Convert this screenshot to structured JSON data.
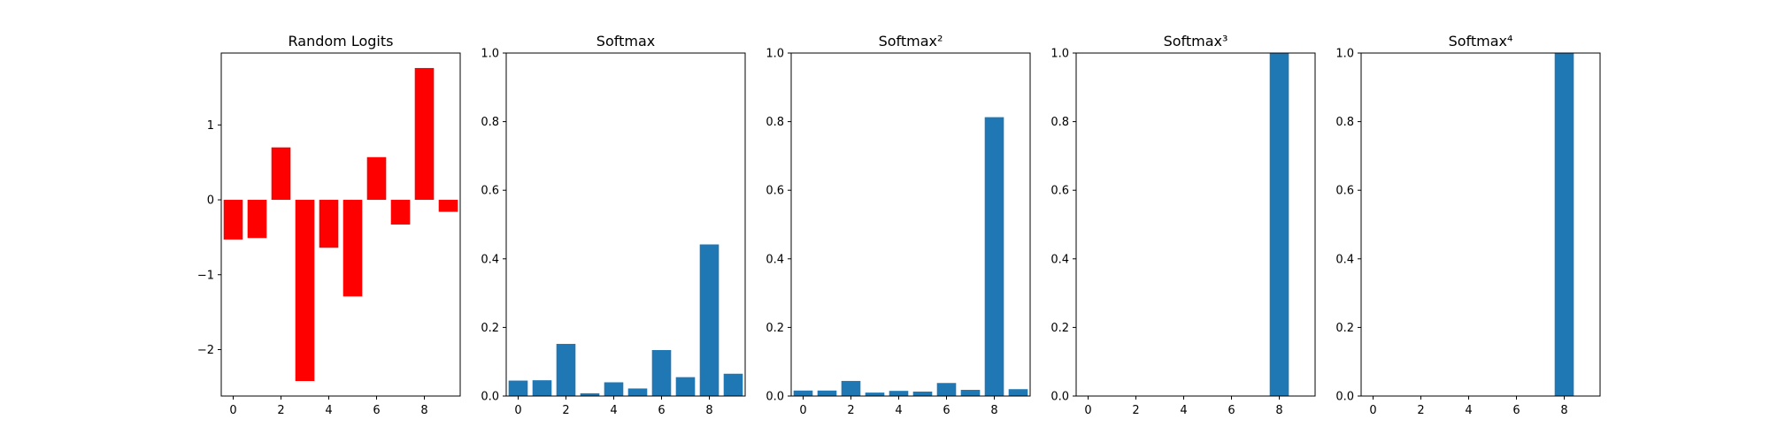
{
  "chart_data": [
    {
      "type": "bar",
      "title": "Random Logits",
      "color": "#ff0000",
      "x": [
        0,
        1,
        2,
        3,
        4,
        5,
        6,
        7,
        8,
        9
      ],
      "values": [
        -0.53,
        -0.51,
        0.7,
        -2.42,
        -0.64,
        -1.29,
        0.57,
        -0.33,
        1.76,
        -0.16
      ],
      "xticks": [
        "0",
        "2",
        "4",
        "6",
        "8"
      ],
      "xtick_values": [
        0,
        2,
        4,
        6,
        8
      ],
      "yticks": [
        "−2",
        "−1",
        "0",
        "1"
      ],
      "ytick_values": [
        -2,
        -1,
        0,
        1
      ],
      "xlim": [
        -0.5,
        9.5
      ],
      "ylim": [
        -2.62,
        1.96
      ],
      "grid": false
    },
    {
      "type": "bar",
      "title": "Softmax",
      "color": "#1f77b4",
      "x": [
        0,
        1,
        2,
        3,
        4,
        5,
        6,
        7,
        8,
        9
      ],
      "values": [
        0.045,
        0.046,
        0.152,
        0.008,
        0.04,
        0.022,
        0.134,
        0.055,
        0.442,
        0.065
      ],
      "xticks": [
        "0",
        "2",
        "4",
        "6",
        "8"
      ],
      "xtick_values": [
        0,
        2,
        4,
        6,
        8
      ],
      "yticks": [
        "0.0",
        "0.2",
        "0.4",
        "0.6",
        "0.8",
        "1.0"
      ],
      "ytick_values": [
        0,
        0.2,
        0.4,
        0.6,
        0.8,
        1.0
      ],
      "xlim": [
        -0.5,
        9.5
      ],
      "ylim": [
        0,
        1
      ],
      "grid": false
    },
    {
      "type": "bar",
      "title": "Softmax²",
      "color": "#1f77b4",
      "x": [
        0,
        1,
        2,
        3,
        4,
        5,
        6,
        7,
        8,
        9
      ],
      "values": [
        0.016,
        0.016,
        0.044,
        0.01,
        0.015,
        0.013,
        0.038,
        0.018,
        0.813,
        0.02
      ],
      "xticks": [
        "0",
        "2",
        "4",
        "6",
        "8"
      ],
      "xtick_values": [
        0,
        2,
        4,
        6,
        8
      ],
      "yticks": [
        "0.0",
        "0.2",
        "0.4",
        "0.6",
        "0.8",
        "1.0"
      ],
      "ytick_values": [
        0,
        0.2,
        0.4,
        0.6,
        0.8,
        1.0
      ],
      "xlim": [
        -0.5,
        9.5
      ],
      "ylim": [
        0,
        1
      ],
      "grid": false
    },
    {
      "type": "bar",
      "title": "Softmax³",
      "color": "#1f77b4",
      "x": [
        0,
        1,
        2,
        3,
        4,
        5,
        6,
        7,
        8,
        9
      ],
      "values": [
        0,
        0,
        0,
        0,
        0,
        0,
        0,
        0,
        1.0,
        0
      ],
      "xticks": [
        "0",
        "2",
        "4",
        "6",
        "8"
      ],
      "xtick_values": [
        0,
        2,
        4,
        6,
        8
      ],
      "yticks": [
        "0.0",
        "0.2",
        "0.4",
        "0.6",
        "0.8",
        "1.0"
      ],
      "ytick_values": [
        0,
        0.2,
        0.4,
        0.6,
        0.8,
        1.0
      ],
      "xlim": [
        -0.5,
        9.5
      ],
      "ylim": [
        0,
        1
      ],
      "grid": false
    },
    {
      "type": "bar",
      "title": "Softmax⁴",
      "color": "#1f77b4",
      "x": [
        0,
        1,
        2,
        3,
        4,
        5,
        6,
        7,
        8,
        9
      ],
      "values": [
        0,
        0,
        0,
        0,
        0,
        0,
        0,
        0,
        1.0,
        0
      ],
      "xticks": [
        "0",
        "2",
        "4",
        "6",
        "8"
      ],
      "xtick_values": [
        0,
        2,
        4,
        6,
        8
      ],
      "yticks": [
        "0.0",
        "0.2",
        "0.4",
        "0.6",
        "0.8",
        "1.0"
      ],
      "ytick_values": [
        0,
        0.2,
        0.4,
        0.6,
        0.8,
        1.0
      ],
      "xlim": [
        -0.5,
        9.5
      ],
      "ylim": [
        0,
        1
      ],
      "grid": false
    }
  ]
}
